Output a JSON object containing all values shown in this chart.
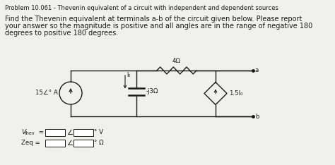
{
  "title": "Problem 10.061 - Thevenin equivalent of a circuit with independent and dependent sources",
  "body_line1": "Find the Thevenin equivalent at terminals a-b of the circuit given below. Please report",
  "body_line2": "your answer so the magnitude is positive and all angles are in the range of negative 180",
  "body_line3": "degrees to positive 180 degrees.",
  "background_color": "#f0f0ec",
  "text_color": "#1a1a1a",
  "title_fontsize": 6.0,
  "body_fontsize": 7.0,
  "label_fontsize": 6.2,
  "cs_label": "15∠° A",
  "r4_label": "4Ω",
  "r_cap_label": "-j3Ω",
  "dep_label": "1.5I₀",
  "i0_label": "I₀",
  "node_a": "a",
  "node_b": "b",
  "vth_label": "V",
  "vth_sub": "thev",
  "zeq_label": "Zeq"
}
